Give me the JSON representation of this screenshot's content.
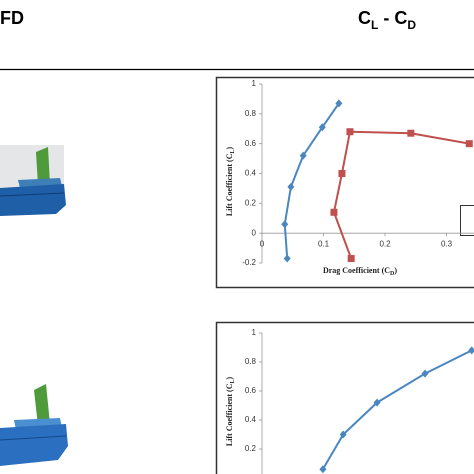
{
  "header": {
    "left": "FD",
    "right": [
      "C",
      "L",
      " - C",
      "D"
    ]
  },
  "chart_data": [
    {
      "type": "line",
      "y_label": [
        "Lift Coefficient (C",
        "L",
        ")"
      ],
      "x_label": [
        "Drag Coefficient (C",
        "D",
        ")"
      ],
      "xlim": [
        0,
        0.35
      ],
      "ylim": [
        -0.2,
        1
      ],
      "xticks": [
        0,
        0.1,
        0.2,
        0.3
      ],
      "yticks": [
        -0.2,
        0,
        0.2,
        0.4,
        0.6,
        0.8,
        1
      ],
      "series": [
        {
          "color": "#4a86c0",
          "marker": "diamond",
          "x": [
            0.041,
            0.037,
            0.047,
            0.067,
            0.098,
            0.125
          ],
          "values": [
            -0.17,
            0.06,
            0.31,
            0.52,
            0.71,
            0.87
          ]
        },
        {
          "color": "#c0504d",
          "marker": "square",
          "x": [
            0.145,
            0.117,
            0.13,
            0.143,
            0.242,
            0.337
          ],
          "values": [
            -0.17,
            0.14,
            0.4,
            0.68,
            0.67,
            0.6
          ]
        }
      ]
    },
    {
      "type": "line",
      "y_label": [
        "Lift Coefficient (C",
        "L",
        ")"
      ],
      "xlim": [
        0,
        0.35
      ],
      "ylim": [
        0,
        1
      ],
      "yticks": [
        0.2,
        0.4,
        0.6,
        0.8,
        1
      ],
      "series": [
        {
          "color": "#4a86c0",
          "marker": "diamond",
          "x": [
            0.099,
            0.132,
            0.187,
            0.265,
            0.341
          ],
          "values": [
            0.06,
            0.3,
            0.52,
            0.72,
            0.88
          ]
        }
      ]
    }
  ]
}
